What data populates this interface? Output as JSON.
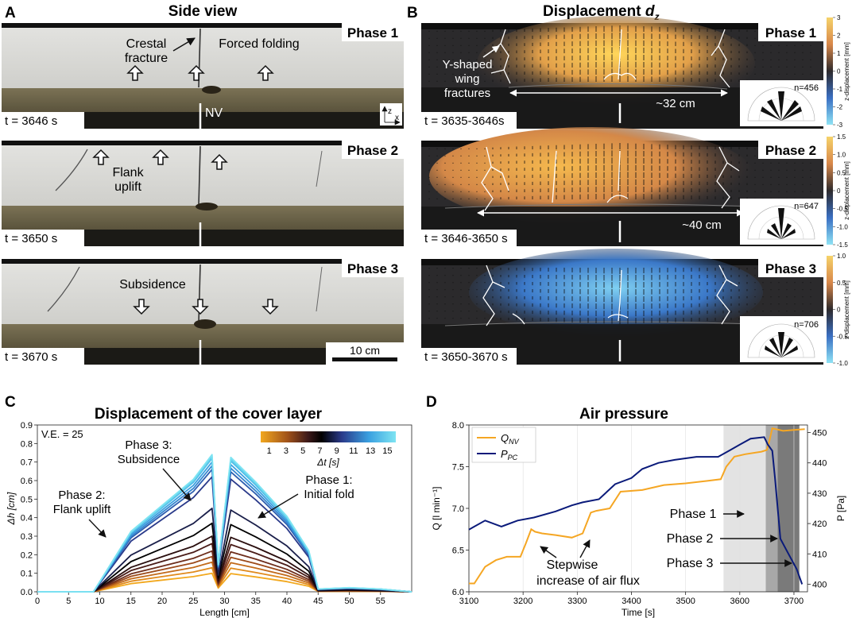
{
  "panelA": {
    "letter": "A",
    "title": "Side view",
    "phases": [
      {
        "label": "Phase 1",
        "time": "t = 3646 s"
      },
      {
        "label": "Phase 2",
        "time": "t = 3650 s"
      },
      {
        "label": "Phase 3",
        "time": "t = 3670 s"
      }
    ],
    "annotations": {
      "crestal1": "Crestal",
      "crestal2": "fracture",
      "forced": "Forced folding",
      "nv": "NV",
      "flank1": "Flank",
      "flank2": "uplift",
      "subsidence": "Subsidence",
      "axis_z": "z",
      "axis_x": "x"
    },
    "scalebar": "10 cm"
  },
  "panelB": {
    "letter": "B",
    "title": "Displacement ",
    "title_var": "d",
    "title_sub": "z",
    "phases": [
      {
        "label": "Phase 1",
        "time": "t = 3635-3646s",
        "n": "n=456",
        "span": "~32 cm",
        "cbar_ticks": [
          "3",
          "2",
          "1",
          "0",
          "-1",
          "-2",
          "-3"
        ],
        "cbar_label": "z-displacement [mm]"
      },
      {
        "label": "Phase 2",
        "time": "t = 3646-3650 s",
        "n": "n=647",
        "span": "~40 cm",
        "cbar_ticks": [
          "1.5",
          "1.0",
          "0.5",
          "0",
          "-0.5",
          "-1.0",
          "-1.5"
        ],
        "cbar_label": "z-displacement [mm]"
      },
      {
        "label": "Phase 3",
        "time": "t = 3650-3670 s",
        "n": "n=706",
        "span": "",
        "cbar_ticks": [
          "1.0",
          "0.5",
          "0",
          "-0.5",
          "-1.0"
        ],
        "cbar_label": "z-displacement [mm]"
      }
    ],
    "wing1": "Y-shaped",
    "wing2": "wing",
    "wing3": "fractures"
  },
  "chart_data": [
    {
      "panel": "C",
      "type": "line",
      "title": "Displacement of the cover layer",
      "xlabel": "Length [cm]",
      "ylabel": "Δh [cm]",
      "xlim": [
        0,
        60
      ],
      "ylim": [
        0,
        0.9
      ],
      "xticks": [
        "0",
        "5",
        "10",
        "15",
        "20",
        "25",
        "30",
        "35",
        "40",
        "45",
        "50",
        "55"
      ],
      "yticks": [
        "0.0",
        "0.1",
        "0.2",
        "0.3",
        "0.4",
        "0.5",
        "0.6",
        "0.7",
        "0.8",
        "0.9"
      ],
      "ve": "V.E. = 25",
      "legend_title": "Δt [s]",
      "legend_ticks": [
        "1",
        "3",
        "5",
        "7",
        "9",
        "11",
        "13",
        "15"
      ],
      "annotations": {
        "p3a": "Phase 3:",
        "p3b": "Subsidence",
        "p2a": "Phase 2:",
        "p2b": "Flank uplift",
        "p1a": "Phase 1:",
        "p1b": "Initial fold"
      },
      "profile_x": [
        0,
        9,
        15,
        20,
        25,
        28,
        29,
        31,
        35,
        40,
        43.5,
        45,
        50,
        55,
        60
      ],
      "profile_shape": [
        0,
        0,
        0.44,
        0.63,
        0.82,
        1.0,
        0.2,
        0.98,
        0.8,
        0.55,
        0.3,
        0.02,
        0.03,
        0.02,
        0.0
      ],
      "series": [
        {
          "name": "1",
          "peak": 0.1
        },
        {
          "name": "2",
          "peak": 0.13
        },
        {
          "name": "3",
          "peak": 0.16
        },
        {
          "name": "4",
          "peak": 0.19
        },
        {
          "name": "5",
          "peak": 0.22
        },
        {
          "name": "6",
          "peak": 0.26
        },
        {
          "name": "7",
          "peak": 0.3
        },
        {
          "name": "8",
          "peak": 0.37
        },
        {
          "name": "9",
          "peak": 0.45
        },
        {
          "name": "10",
          "peak": 0.62
        },
        {
          "name": "11",
          "peak": 0.66
        },
        {
          "name": "12",
          "peak": 0.68
        },
        {
          "name": "13",
          "peak": 0.7
        },
        {
          "name": "14",
          "peak": 0.72
        },
        {
          "name": "15",
          "peak": 0.73
        },
        {
          "name": "16",
          "peak": 0.74
        }
      ]
    },
    {
      "panel": "D",
      "type": "line",
      "title": "Air pressure",
      "xlabel": "Time [s]",
      "ylabel": "Q [l min⁻¹]",
      "y2label": "P [Pa]",
      "xlim": [
        3100,
        3725
      ],
      "ylim": [
        6.0,
        8.0
      ],
      "y2lim": [
        397.5,
        452.5
      ],
      "xticks": [
        "3100",
        "3200",
        "3300",
        "3400",
        "3500",
        "3600",
        "3700"
      ],
      "yticks": [
        "6.0",
        "6.5",
        "7.0",
        "7.5",
        "8.0"
      ],
      "y2ticks": [
        "400",
        "410",
        "420",
        "430",
        "440",
        "450"
      ],
      "phase_spans": [
        {
          "name": "Phase 1",
          "from": 3570,
          "to": 3648
        },
        {
          "name": "Phase 2",
          "from": 3648,
          "to": 3670
        },
        {
          "name": "Phase 3",
          "from": 3670,
          "to": 3710
        }
      ],
      "legend": [
        "Q_NV",
        "P_PC"
      ],
      "series": [
        {
          "name": "Q_NV",
          "color": "#f5a623",
          "x": [
            3100,
            3110,
            3130,
            3150,
            3170,
            3195,
            3205,
            3215,
            3222,
            3235,
            3260,
            3290,
            3310,
            3325,
            3335,
            3360,
            3380,
            3420,
            3460,
            3500,
            3540,
            3565,
            3575,
            3590,
            3610,
            3640,
            3650,
            3655,
            3660,
            3680,
            3700,
            3720
          ],
          "y": [
            6.1,
            6.1,
            6.3,
            6.38,
            6.42,
            6.42,
            6.58,
            6.75,
            6.72,
            6.7,
            6.68,
            6.65,
            6.7,
            6.95,
            6.97,
            7.0,
            7.2,
            7.22,
            7.28,
            7.3,
            7.33,
            7.35,
            7.5,
            7.62,
            7.65,
            7.68,
            7.7,
            7.82,
            7.96,
            7.93,
            7.94,
            7.95
          ]
        },
        {
          "name": "P_PC",
          "color": "#0a1a7a",
          "x": [
            3100,
            3110,
            3130,
            3160,
            3190,
            3220,
            3260,
            3290,
            3310,
            3340,
            3370,
            3400,
            3420,
            3450,
            3480,
            3520,
            3560,
            3580,
            3600,
            3620,
            3645,
            3652,
            3660,
            3665,
            3675,
            3690,
            3705,
            3715
          ],
          "y": [
            418,
            419,
            421,
            419,
            421,
            422,
            424,
            426,
            427,
            428,
            433,
            435,
            438,
            440,
            441,
            442,
            442,
            444,
            446,
            448,
            448.5,
            446,
            444,
            435,
            415,
            410,
            405,
            400
          ]
        }
      ],
      "annotations": {
        "stepwise1": "Stepwise",
        "stepwise2": "increase of air flux",
        "phase1": "Phase 1",
        "phase2": "Phase 2",
        "phase3": "Phase 3"
      }
    }
  ],
  "panel_letters": {
    "C": "C",
    "D": "D"
  },
  "colors": {
    "sand": "#dcdcda",
    "rubber": "#6d6548",
    "qnv": "#f5a623",
    "ppc": "#0a1a7a"
  }
}
